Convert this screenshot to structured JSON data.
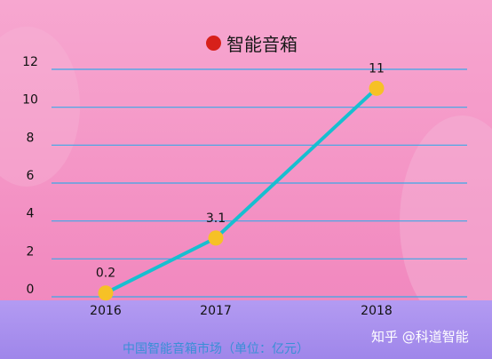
{
  "chart_data": {
    "type": "line",
    "categories": [
      "2016",
      "2017",
      "2018"
    ],
    "values": [
      0.2,
      3.1,
      11
    ],
    "data_labels": [
      "0.2",
      "3.1",
      "11"
    ],
    "yticks": [
      "0",
      "2",
      "4",
      "6",
      "8",
      "10",
      "12"
    ],
    "ylim": [
      0,
      12
    ],
    "grid": true,
    "legend": {
      "name": "智能音箱",
      "placement": "top-center",
      "marker_color": "#d7201a"
    },
    "colors": {
      "line": "#17bfd0",
      "marker": "#f6c126",
      "grid": "#3aa8e8"
    }
  },
  "caption": "中国智能音箱市场（单位：亿元）",
  "watermark": "知乎 @科道智能"
}
